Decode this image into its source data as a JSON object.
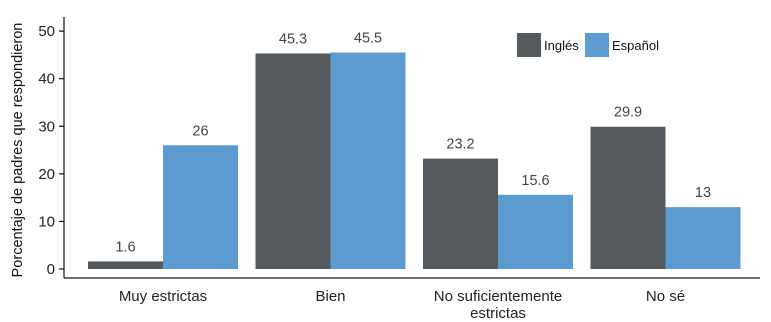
{
  "chart_data": {
    "type": "bar",
    "title": "",
    "xlabel": "",
    "ylabel": "Porcentaje de padres que respondieron",
    "ylim": [
      0,
      52
    ],
    "yticks": [
      0,
      10,
      20,
      30,
      40,
      50
    ],
    "grid": false,
    "legend_position": "top-right",
    "categories": [
      [
        "Muy estrictas"
      ],
      [
        "Bien"
      ],
      [
        "No suficientemente",
        "estrictas"
      ],
      [
        "No sé"
      ]
    ],
    "series": [
      {
        "name": "Inglés",
        "color": "#555a5e",
        "values": [
          1.6,
          45.3,
          23.2,
          29.9
        ],
        "labels": [
          "1.6",
          "45.3",
          "23.2",
          "29.9"
        ]
      },
      {
        "name": "Español",
        "color": "#5b9bd0",
        "values": [
          26,
          45.5,
          15.6,
          13
        ],
        "labels": [
          "26",
          "45.5",
          "15.6",
          "13"
        ]
      }
    ]
  }
}
